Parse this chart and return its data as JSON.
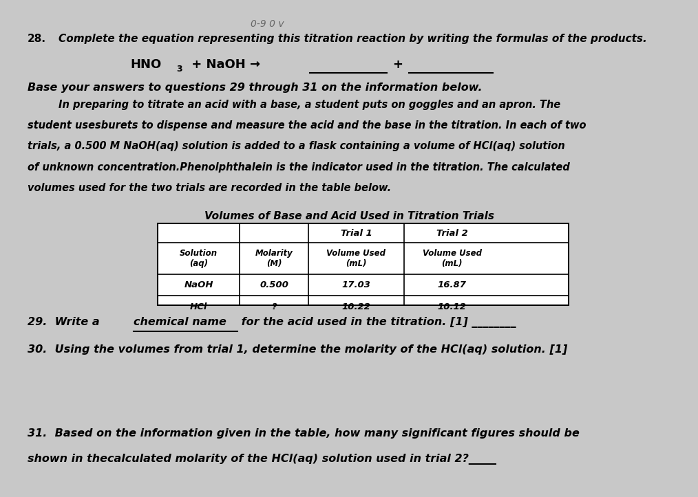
{
  "bg_color": "#c8c8c8",
  "top_handwriting": "0-9 0 v",
  "q28_label": "28.",
  "q28_text": "Complete the equation representing this titration reaction by writing the formulas of the products.",
  "base_intro": "Base your answers to questions 29 through 31 on the information below.",
  "paragraph": "In preparing to titrate an acid with a base, a student puts on goggles and an apron. The\nstudent usesburets to dispense and measure the acid and the base in the titration. In each of two\ntrials, a 0.500 M NaOH(aq) solution is added to a flask containing a volume of HCl(aq) solution\nof unknown concentration.Phenolphthalein is the indicator used in the titration. The calculated\nvolumes used for the two trials are recorded in the table below.",
  "table_title": "Volumes of Base and Acid Used in Titration Trials",
  "table_headers_row0": [
    "",
    "",
    "Trial 1",
    "Trial 2"
  ],
  "table_headers_row1": [
    "Solution\n(aq)",
    "Molarity\n(M)",
    "Volume Used\n(mL)",
    "Volume Used\n(mL)"
  ],
  "table_data": [
    [
      "NaOH",
      "0.500",
      "17.03",
      "16.87"
    ],
    [
      "HCl",
      "?",
      "10.22",
      "10.12"
    ]
  ],
  "q29_before_underline": "29.  Write a ",
  "q29_underline": "chemical name",
  "q29_after_underline": " for the acid used in the titration. [1] ________",
  "q30_text": "30.  Using the volumes from trial 1, determine the molarity of the HCl(aq) solution. [1]",
  "q31_line1": "31.  Based on the information given in the table, how many significant figures should be",
  "q31_line2": "shown in thecalculated molarity of the HCl(aq) solution used in trial 2?_____"
}
